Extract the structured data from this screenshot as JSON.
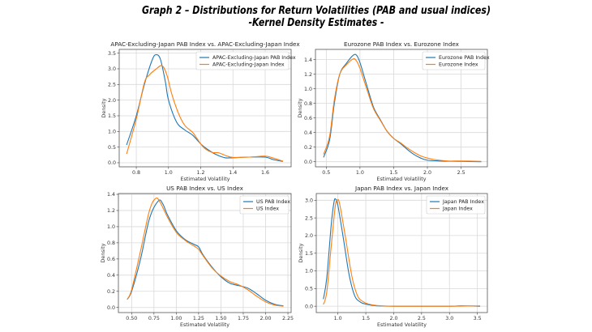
{
  "header": {
    "title_line1": "Graph 2 – Distributions for Return Volatilities (PAB and usual indices)",
    "title_line2": "-Kernel Density Estimates -"
  },
  "colors": {
    "pab": "#1f77b4",
    "index": "#ff7f0e",
    "grid": "#d9d9d9"
  },
  "chart_data": [
    {
      "type": "line",
      "title": "APAC-Excluding-Japan PAB Index vs. APAC-Excluding-Japan Index",
      "xlabel": "Estimated Volatility",
      "ylabel": "Density",
      "xlim": [
        0.694,
        1.761
      ],
      "ylim": [
        -0.13,
        3.62
      ],
      "xticks": [
        0.8,
        1.0,
        1.2,
        1.4,
        1.6
      ],
      "xtick_labels": [
        "0.8",
        "1.0",
        "1.2",
        "1.4",
        "1.6"
      ],
      "yticks": [
        0,
        0.5,
        1,
        1.5,
        2,
        2.5,
        3,
        3.5
      ],
      "ytick_labels": [
        "0.0",
        "0.5",
        "1.0",
        "1.5",
        "2.0",
        "2.5",
        "3.0",
        "3.5"
      ],
      "grid": true,
      "legend": "top-right",
      "series": [
        {
          "name": "APAC-Excluding-Japan PAB Index",
          "points": [
            [
              0.74,
              0.57
            ],
            [
              0.8,
              1.5
            ],
            [
              0.85,
              2.5
            ],
            [
              0.9,
              3.3
            ],
            [
              0.925,
              3.45
            ],
            [
              0.95,
              3.3
            ],
            [
              0.98,
              2.6
            ],
            [
              1.0,
              2.0
            ],
            [
              1.05,
              1.3
            ],
            [
              1.1,
              1.05
            ],
            [
              1.15,
              0.88
            ],
            [
              1.2,
              0.6
            ],
            [
              1.25,
              0.4
            ],
            [
              1.3,
              0.25
            ],
            [
              1.35,
              0.16
            ],
            [
              1.4,
              0.16
            ],
            [
              1.5,
              0.18
            ],
            [
              1.6,
              0.18
            ],
            [
              1.65,
              0.1
            ],
            [
              1.71,
              0.04
            ]
          ]
        },
        {
          "name": "APAC-Excluding-Japan Index",
          "points": [
            [
              0.74,
              0.28
            ],
            [
              0.8,
              1.4
            ],
            [
              0.85,
              2.55
            ],
            [
              0.88,
              2.8
            ],
            [
              0.92,
              2.98
            ],
            [
              0.96,
              3.1
            ],
            [
              0.99,
              2.8
            ],
            [
              1.02,
              2.2
            ],
            [
              1.06,
              1.6
            ],
            [
              1.1,
              1.2
            ],
            [
              1.15,
              0.97
            ],
            [
              1.18,
              0.75
            ],
            [
              1.22,
              0.48
            ],
            [
              1.27,
              0.33
            ],
            [
              1.31,
              0.32
            ],
            [
              1.36,
              0.22
            ],
            [
              1.4,
              0.17
            ],
            [
              1.5,
              0.18
            ],
            [
              1.6,
              0.21
            ],
            [
              1.65,
              0.15
            ],
            [
              1.71,
              0.05
            ]
          ]
        }
      ]
    },
    {
      "type": "line",
      "title": "Eurozone PAB Index vs. Eurozone Index",
      "xlabel": "Estimated Volatility",
      "ylabel": "Density",
      "xlim": [
        0.34,
        2.89
      ],
      "ylim": [
        -0.07,
        1.54
      ],
      "xticks": [
        0.5,
        1.0,
        1.5,
        2.0,
        2.5
      ],
      "xtick_labels": [
        "0.5",
        "1.0",
        "1.5",
        "2.0",
        "2.5"
      ],
      "yticks": [
        0,
        0.2,
        0.4,
        0.6,
        0.8,
        1.0,
        1.2,
        1.4
      ],
      "ytick_labels": [
        "0.0",
        "0.2",
        "0.4",
        "0.6",
        "0.8",
        "1.0",
        "1.2",
        "1.4"
      ],
      "grid": true,
      "legend": "top-right",
      "series": [
        {
          "name": "Eurozone PAB Index",
          "points": [
            [
              0.46,
              0.06
            ],
            [
              0.55,
              0.3
            ],
            [
              0.62,
              0.8
            ],
            [
              0.7,
              1.2
            ],
            [
              0.8,
              1.35
            ],
            [
              0.9,
              1.46
            ],
            [
              0.95,
              1.46
            ],
            [
              1.0,
              1.36
            ],
            [
              1.1,
              1.05
            ],
            [
              1.2,
              0.75
            ],
            [
              1.3,
              0.58
            ],
            [
              1.4,
              0.42
            ],
            [
              1.5,
              0.32
            ],
            [
              1.6,
              0.25
            ],
            [
              1.7,
              0.17
            ],
            [
              1.8,
              0.1
            ],
            [
              1.9,
              0.05
            ],
            [
              2.0,
              0.02
            ],
            [
              2.2,
              0.01
            ],
            [
              2.5,
              0.005
            ],
            [
              2.8,
              0.0
            ]
          ]
        },
        {
          "name": "Eurozone Index",
          "points": [
            [
              0.46,
              0.1
            ],
            [
              0.55,
              0.35
            ],
            [
              0.62,
              0.85
            ],
            [
              0.7,
              1.2
            ],
            [
              0.8,
              1.33
            ],
            [
              0.9,
              1.41
            ],
            [
              0.95,
              1.38
            ],
            [
              1.0,
              1.28
            ],
            [
              1.1,
              1.0
            ],
            [
              1.2,
              0.73
            ],
            [
              1.3,
              0.57
            ],
            [
              1.4,
              0.42
            ],
            [
              1.5,
              0.32
            ],
            [
              1.6,
              0.26
            ],
            [
              1.7,
              0.19
            ],
            [
              1.8,
              0.13
            ],
            [
              1.9,
              0.08
            ],
            [
              2.0,
              0.05
            ],
            [
              2.1,
              0.03
            ],
            [
              2.3,
              0.01
            ],
            [
              2.5,
              0.01
            ],
            [
              2.8,
              0.005
            ]
          ]
        }
      ]
    },
    {
      "type": "line",
      "title": "US PAB Index vs. US Index",
      "xlabel": "Estimated Volatility",
      "ylabel": "Density",
      "xlim": [
        0.352,
        2.286
      ],
      "ylim": [
        -0.063,
        1.41
      ],
      "xticks": [
        0.5,
        0.75,
        1.0,
        1.25,
        1.5,
        1.75,
        2.0,
        2.25
      ],
      "xtick_labels": [
        "0.50",
        "0.75",
        "1.00",
        "1.25",
        "1.50",
        "1.75",
        "2.00",
        "2.25"
      ],
      "yticks": [
        0,
        0.2,
        0.4,
        0.6,
        0.8,
        1.0,
        1.2,
        1.4
      ],
      "ytick_labels": [
        "0.0",
        "0.2",
        "0.4",
        "0.6",
        "0.8",
        "1.0",
        "1.2",
        "1.4"
      ],
      "grid": true,
      "legend": "top-right",
      "series": [
        {
          "name": "US PAB Index",
          "points": [
            [
              0.45,
              0.1
            ],
            [
              0.5,
              0.2
            ],
            [
              0.6,
              0.6
            ],
            [
              0.7,
              1.1
            ],
            [
              0.8,
              1.32
            ],
            [
              0.85,
              1.28
            ],
            [
              0.9,
              1.15
            ],
            [
              1.0,
              0.95
            ],
            [
              1.1,
              0.84
            ],
            [
              1.2,
              0.78
            ],
            [
              1.25,
              0.75
            ],
            [
              1.3,
              0.65
            ],
            [
              1.4,
              0.5
            ],
            [
              1.5,
              0.38
            ],
            [
              1.6,
              0.3
            ],
            [
              1.7,
              0.27
            ],
            [
              1.8,
              0.24
            ],
            [
              1.9,
              0.17
            ],
            [
              2.0,
              0.09
            ],
            [
              2.1,
              0.04
            ],
            [
              2.2,
              0.02
            ]
          ]
        },
        {
          "name": "US Index",
          "points": [
            [
              0.45,
              0.1
            ],
            [
              0.5,
              0.22
            ],
            [
              0.6,
              0.7
            ],
            [
              0.7,
              1.2
            ],
            [
              0.77,
              1.35
            ],
            [
              0.82,
              1.3
            ],
            [
              0.9,
              1.12
            ],
            [
              1.0,
              0.93
            ],
            [
              1.1,
              0.83
            ],
            [
              1.2,
              0.76
            ],
            [
              1.25,
              0.72
            ],
            [
              1.3,
              0.64
            ],
            [
              1.4,
              0.49
            ],
            [
              1.5,
              0.39
            ],
            [
              1.6,
              0.32
            ],
            [
              1.7,
              0.28
            ],
            [
              1.8,
              0.22
            ],
            [
              1.9,
              0.14
            ],
            [
              2.0,
              0.07
            ],
            [
              2.1,
              0.03
            ],
            [
              2.2,
              0.015
            ]
          ]
        }
      ]
    },
    {
      "type": "line",
      "title": "Japan PAB Index vs. Japan Index",
      "xlabel": "Estimated Volatility",
      "ylabel": "Density",
      "xlim": [
        0.612,
        3.68
      ],
      "ylim": [
        -0.18,
        3.19
      ],
      "xticks": [
        1.0,
        1.5,
        2.0,
        2.5,
        3.0,
        3.5
      ],
      "xtick_labels": [
        "1.0",
        "1.5",
        "2.0",
        "2.5",
        "3.0",
        "3.5"
      ],
      "yticks": [
        0,
        0.5,
        1.0,
        1.5,
        2.0,
        2.5,
        3.0
      ],
      "ytick_labels": [
        "0.0",
        "0.5",
        "1.0",
        "1.5",
        "2.0",
        "2.5",
        "3.0"
      ],
      "grid": true,
      "legend": "top-right",
      "series": [
        {
          "name": "Japan PAB Index",
          "points": [
            [
              0.74,
              0.2
            ],
            [
              0.8,
              0.8
            ],
            [
              0.88,
              2.3
            ],
            [
              0.93,
              2.95
            ],
            [
              0.96,
              3.03
            ],
            [
              1.0,
              2.85
            ],
            [
              1.1,
              1.9
            ],
            [
              1.2,
              0.9
            ],
            [
              1.3,
              0.3
            ],
            [
              1.4,
              0.12
            ],
            [
              1.5,
              0.06
            ],
            [
              1.7,
              0.01
            ],
            [
              2.0,
              0.0
            ],
            [
              3.0,
              0.0
            ],
            [
              3.2,
              0.01
            ],
            [
              3.55,
              0.0
            ]
          ]
        },
        {
          "name": "Japan Index",
          "points": [
            [
              0.74,
              0.05
            ],
            [
              0.8,
              0.4
            ],
            [
              0.88,
              1.7
            ],
            [
              0.95,
              2.8
            ],
            [
              0.99,
              3.0
            ],
            [
              1.03,
              2.9
            ],
            [
              1.13,
              2.0
            ],
            [
              1.25,
              0.85
            ],
            [
              1.35,
              0.3
            ],
            [
              1.45,
              0.13
            ],
            [
              1.55,
              0.06
            ],
            [
              1.7,
              0.02
            ],
            [
              2.0,
              0.0
            ],
            [
              3.0,
              0.0
            ],
            [
              3.55,
              0.01
            ]
          ]
        }
      ]
    }
  ]
}
